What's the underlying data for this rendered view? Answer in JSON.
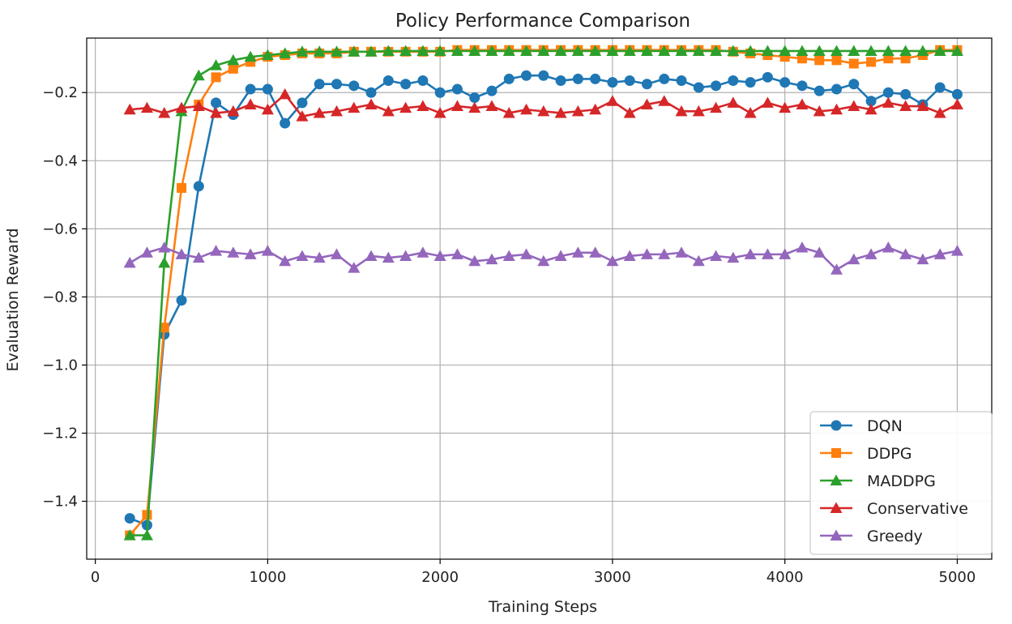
{
  "chart_data": {
    "type": "line",
    "title": "Policy Performance Comparison",
    "xlabel": "Training Steps",
    "ylabel": "Evaluation Reward",
    "xlim": [
      -50,
      5200
    ],
    "ylim": [
      -1.57,
      -0.04
    ],
    "xticks": [
      0,
      1000,
      2000,
      3000,
      4000,
      5000
    ],
    "xtick_labels": [
      "0",
      "1000",
      "2000",
      "3000",
      "4000",
      "5000"
    ],
    "yticks": [
      -1.4,
      -1.2,
      -1.0,
      -0.8,
      -0.6,
      -0.4,
      -0.2
    ],
    "ytick_labels": [
      "−1.4",
      "−1.2",
      "−1.0",
      "−0.8",
      "−0.6",
      "−0.4",
      "−0.2"
    ],
    "grid": true,
    "legend_position": "lower-right",
    "x": [
      200,
      300,
      400,
      500,
      600,
      700,
      800,
      900,
      1000,
      1100,
      1200,
      1300,
      1400,
      1500,
      1600,
      1700,
      1800,
      1900,
      2000,
      2100,
      2200,
      2300,
      2400,
      2500,
      2600,
      2700,
      2800,
      2900,
      3000,
      3100,
      3200,
      3300,
      3400,
      3500,
      3600,
      3700,
      3800,
      3900,
      4000,
      4100,
      4200,
      4300,
      4400,
      4500,
      4600,
      4700,
      4800,
      4900,
      5000
    ],
    "series": [
      {
        "name": "DQN",
        "color": "#1f77b4",
        "marker": "circle",
        "values": [
          -1.45,
          -1.47,
          -0.91,
          -0.81,
          -0.475,
          -0.23,
          -0.265,
          -0.19,
          -0.19,
          -0.29,
          -0.23,
          -0.175,
          -0.175,
          -0.18,
          -0.2,
          -0.165,
          -0.175,
          -0.165,
          -0.2,
          -0.19,
          -0.215,
          -0.195,
          -0.16,
          -0.15,
          -0.15,
          -0.165,
          -0.16,
          -0.16,
          -0.17,
          -0.165,
          -0.175,
          -0.16,
          -0.165,
          -0.185,
          -0.18,
          -0.165,
          -0.17,
          -0.155,
          -0.17,
          -0.18,
          -0.195,
          -0.19,
          -0.175,
          -0.225,
          -0.2,
          -0.205,
          -0.235,
          -0.185,
          -0.205
        ]
      },
      {
        "name": "DDPG",
        "color": "#ff7f0e",
        "marker": "square",
        "values": [
          -1.5,
          -1.44,
          -0.89,
          -0.48,
          -0.235,
          -0.155,
          -0.13,
          -0.11,
          -0.095,
          -0.09,
          -0.085,
          -0.085,
          -0.085,
          -0.08,
          -0.08,
          -0.08,
          -0.08,
          -0.08,
          -0.08,
          -0.075,
          -0.075,
          -0.075,
          -0.075,
          -0.075,
          -0.075,
          -0.075,
          -0.075,
          -0.075,
          -0.075,
          -0.075,
          -0.075,
          -0.075,
          -0.075,
          -0.075,
          -0.075,
          -0.08,
          -0.085,
          -0.09,
          -0.095,
          -0.1,
          -0.105,
          -0.105,
          -0.115,
          -0.11,
          -0.1,
          -0.1,
          -0.09,
          -0.075,
          -0.075
        ]
      },
      {
        "name": "MADDPG",
        "color": "#2ca02c",
        "marker": "triangle",
        "values": [
          -1.5,
          -1.5,
          -0.7,
          -0.255,
          -0.15,
          -0.12,
          -0.105,
          -0.095,
          -0.09,
          -0.085,
          -0.08,
          -0.08,
          -0.08,
          -0.08,
          -0.08,
          -0.078,
          -0.078,
          -0.078,
          -0.078,
          -0.078,
          -0.078,
          -0.078,
          -0.078,
          -0.078,
          -0.078,
          -0.078,
          -0.078,
          -0.078,
          -0.078,
          -0.078,
          -0.078,
          -0.078,
          -0.078,
          -0.078,
          -0.078,
          -0.078,
          -0.078,
          -0.078,
          -0.078,
          -0.078,
          -0.078,
          -0.078,
          -0.078,
          -0.078,
          -0.078,
          -0.078,
          -0.078,
          -0.078,
          -0.078
        ]
      },
      {
        "name": "Conservative",
        "color": "#d62728",
        "marker": "triangle",
        "values": [
          -0.25,
          -0.245,
          -0.26,
          -0.245,
          -0.24,
          -0.26,
          -0.255,
          -0.235,
          -0.25,
          -0.205,
          -0.27,
          -0.26,
          -0.255,
          -0.245,
          -0.235,
          -0.255,
          -0.245,
          -0.24,
          -0.26,
          -0.24,
          -0.245,
          -0.24,
          -0.26,
          -0.25,
          -0.255,
          -0.26,
          -0.255,
          -0.25,
          -0.225,
          -0.26,
          -0.235,
          -0.225,
          -0.255,
          -0.255,
          -0.245,
          -0.23,
          -0.26,
          -0.23,
          -0.245,
          -0.235,
          -0.255,
          -0.25,
          -0.24,
          -0.25,
          -0.23,
          -0.24,
          -0.24,
          -0.26,
          -0.235
        ]
      },
      {
        "name": "Greedy",
        "color": "#9467bd",
        "marker": "triangle",
        "values": [
          -0.7,
          -0.67,
          -0.655,
          -0.675,
          -0.685,
          -0.665,
          -0.67,
          -0.675,
          -0.665,
          -0.695,
          -0.68,
          -0.685,
          -0.675,
          -0.715,
          -0.68,
          -0.685,
          -0.68,
          -0.67,
          -0.68,
          -0.675,
          -0.695,
          -0.69,
          -0.68,
          -0.675,
          -0.695,
          -0.68,
          -0.67,
          -0.67,
          -0.695,
          -0.68,
          -0.675,
          -0.675,
          -0.67,
          -0.695,
          -0.68,
          -0.685,
          -0.675,
          -0.675,
          -0.675,
          -0.655,
          -0.67,
          -0.72,
          -0.69,
          -0.675,
          -0.655,
          -0.675,
          -0.69,
          -0.675,
          -0.665
        ]
      }
    ]
  }
}
